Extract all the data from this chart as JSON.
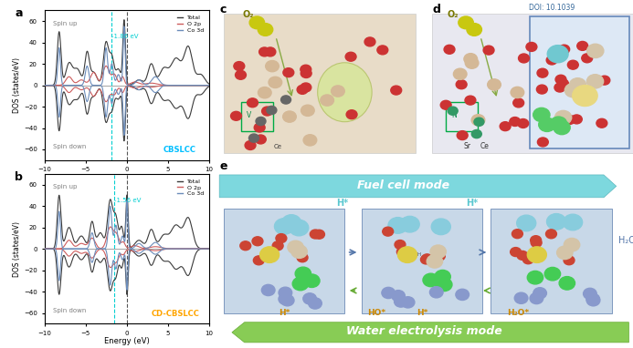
{
  "panel_a": {
    "title_label": "CBSLCC",
    "title_color": "#00BFFF",
    "vline1": -1.86,
    "vline2": 0.0,
    "vline_color": "#00CED1",
    "vline2_color": "#555555",
    "label1": "-1.86 eV",
    "spin_up": "Spin up",
    "spin_down": "Spin down",
    "xlabel": "Energy (eV)",
    "ylabel": "DOS (states/eV)",
    "xlim": [
      -10,
      10
    ],
    "ylim": [
      -70,
      70
    ],
    "legend": [
      "Total",
      "O 2p",
      "Co 3d"
    ],
    "legend_colors": [
      "#3a3a3a",
      "#cd5c5c",
      "#6b8cba"
    ]
  },
  "panel_b": {
    "title_label": "CD-CBSLCC",
    "title_color": "#FFA500",
    "vline1": -1.56,
    "vline2": 0.0,
    "vline_color": "#00CED1",
    "vline2_color": "#555555",
    "label1": "-1.56 eV",
    "spin_up": "Spin up",
    "spin_down": "Spin down",
    "xlabel": "Energy (eV)",
    "ylabel": "DOS (states/eV)",
    "xlim": [
      -10,
      10
    ],
    "ylim": [
      -70,
      70
    ],
    "legend": [
      "Total",
      "O 2p",
      "Co 3d"
    ],
    "legend_colors": [
      "#3a3a3a",
      "#cd5c5c",
      "#6b8cba"
    ]
  },
  "panel_e": {
    "fuel_cell_text": "Fuel cell mode",
    "fuel_cell_color": "#5BC8D0",
    "water_text": "Water electrolysis mode",
    "water_color": "#7DC55A",
    "label_color_top": "#5BC8D0",
    "label_color_bottom": "#FFA500"
  },
  "doi_text": "DOI: 10.1039",
  "background_color": "#ffffff"
}
